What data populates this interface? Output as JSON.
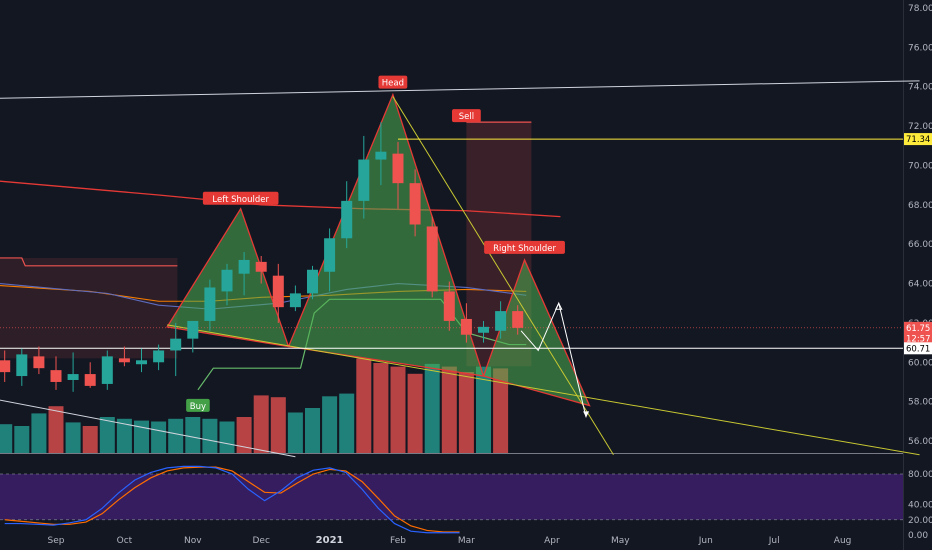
{
  "chart_data": {
    "type": "candlestick",
    "title": "",
    "colors": {
      "background": "#131722",
      "up": "#26a69a",
      "down": "#ef5350",
      "pattern_fill": "#4caf50",
      "pattern_edge": "#e53935",
      "trendline": "#c8c832",
      "resistance": "#d1d4dc",
      "osc_band": "#3c1f6b",
      "osc_k": "#2962ff",
      "osc_d": "#ff6d00"
    },
    "price_axis": {
      "min": 55,
      "max": 78,
      "ticks": [
        "78.00",
        "76.00",
        "74.00",
        "72.00",
        "70.00",
        "68.00",
        "66.00",
        "64.00",
        "62.00",
        "60.00",
        "58.00",
        "56.00"
      ],
      "tick_values": [
        78,
        76,
        74,
        72,
        70,
        68,
        66,
        64,
        62,
        60,
        58,
        56
      ]
    },
    "oscillator_axis": {
      "min": 0,
      "max": 100,
      "ticks": [
        "80.00",
        "40.00",
        "20.00",
        "0.00"
      ],
      "tick_values": [
        80,
        40,
        20,
        0
      ],
      "band": [
        20,
        80
      ]
    },
    "time_axis": {
      "labels": [
        "Sep",
        "Oct",
        "Nov",
        "Dec",
        "2021",
        "Feb",
        "Mar",
        "Apr",
        "May",
        "Jun",
        "Jul",
        "Aug"
      ],
      "positions": [
        0,
        4,
        8,
        12,
        16,
        20,
        24,
        29,
        33,
        38,
        42,
        46
      ]
    },
    "candles": [
      {
        "i": -3,
        "o": 60.1,
        "h": 60.6,
        "l": 59.0,
        "c": 59.5
      },
      {
        "i": -2,
        "o": 59.3,
        "h": 60.7,
        "l": 58.8,
        "c": 60.4
      },
      {
        "i": -1,
        "o": 60.3,
        "h": 60.8,
        "l": 59.4,
        "c": 59.7
      },
      {
        "i": 0,
        "o": 59.6,
        "h": 60.3,
        "l": 58.6,
        "c": 59.0
      },
      {
        "i": 1,
        "o": 59.1,
        "h": 60.5,
        "l": 58.5,
        "c": 59.4
      },
      {
        "i": 2,
        "o": 59.4,
        "h": 60.0,
        "l": 58.7,
        "c": 58.8
      },
      {
        "i": 3,
        "o": 58.9,
        "h": 60.6,
        "l": 58.6,
        "c": 60.3
      },
      {
        "i": 4,
        "o": 60.2,
        "h": 60.8,
        "l": 59.8,
        "c": 60.0
      },
      {
        "i": 5,
        "o": 59.9,
        "h": 60.7,
        "l": 59.5,
        "c": 60.1
      },
      {
        "i": 6,
        "o": 60.0,
        "h": 60.9,
        "l": 59.6,
        "c": 60.6
      },
      {
        "i": 7,
        "o": 60.6,
        "h": 62.0,
        "l": 59.3,
        "c": 61.2
      },
      {
        "i": 8,
        "o": 61.2,
        "h": 62.1,
        "l": 60.5,
        "c": 62.1
      },
      {
        "i": 9,
        "o": 62.1,
        "h": 64.2,
        "l": 61.6,
        "c": 63.8
      },
      {
        "i": 10,
        "o": 63.6,
        "h": 65.0,
        "l": 62.9,
        "c": 64.7
      },
      {
        "i": 11,
        "o": 64.5,
        "h": 65.6,
        "l": 63.4,
        "c": 65.2
      },
      {
        "i": 12,
        "o": 65.1,
        "h": 65.4,
        "l": 64.0,
        "c": 64.6
      },
      {
        "i": 13,
        "o": 64.4,
        "h": 65.0,
        "l": 62.0,
        "c": 62.8
      },
      {
        "i": 14,
        "o": 62.8,
        "h": 63.9,
        "l": 62.6,
        "c": 63.5
      },
      {
        "i": 15,
        "o": 63.5,
        "h": 64.9,
        "l": 63.2,
        "c": 64.7
      },
      {
        "i": 16,
        "o": 64.6,
        "h": 66.8,
        "l": 63.6,
        "c": 66.3
      },
      {
        "i": 17,
        "o": 66.3,
        "h": 69.2,
        "l": 65.8,
        "c": 68.2
      },
      {
        "i": 18,
        "o": 68.2,
        "h": 71.5,
        "l": 67.3,
        "c": 70.3
      },
      {
        "i": 19,
        "o": 70.3,
        "h": 72.2,
        "l": 69.0,
        "c": 70.7
      },
      {
        "i": 20,
        "o": 70.6,
        "h": 71.2,
        "l": 67.8,
        "c": 69.1
      },
      {
        "i": 21,
        "o": 69.1,
        "h": 69.8,
        "l": 66.4,
        "c": 67.0
      },
      {
        "i": 22,
        "o": 66.9,
        "h": 67.4,
        "l": 63.3,
        "c": 63.6
      },
      {
        "i": 23,
        "o": 63.6,
        "h": 64.1,
        "l": 61.6,
        "c": 62.1
      },
      {
        "i": 24,
        "o": 62.2,
        "h": 63.0,
        "l": 61.0,
        "c": 61.4
      },
      {
        "i": 25,
        "o": 61.5,
        "h": 62.1,
        "l": 61.0,
        "c": 61.8
      },
      {
        "i": 26,
        "o": 61.6,
        "h": 63.1,
        "l": 61.2,
        "c": 62.6
      },
      {
        "i": 27,
        "o": 62.6,
        "h": 62.9,
        "l": 61.4,
        "c": 61.75
      }
    ],
    "candle_spacing_index_start": 0,
    "volume": [
      {
        "i": -3,
        "v": 32,
        "up": true
      },
      {
        "i": -2,
        "v": 30,
        "up": true
      },
      {
        "i": -1,
        "v": 44,
        "up": true
      },
      {
        "i": 0,
        "v": 52,
        "up": false
      },
      {
        "i": 1,
        "v": 34,
        "up": true
      },
      {
        "i": 2,
        "v": 30,
        "up": false
      },
      {
        "i": 3,
        "v": 40,
        "up": true
      },
      {
        "i": 4,
        "v": 38,
        "up": true
      },
      {
        "i": 5,
        "v": 36,
        "up": true
      },
      {
        "i": 6,
        "v": 35,
        "up": true
      },
      {
        "i": 7,
        "v": 38,
        "up": true
      },
      {
        "i": 8,
        "v": 40,
        "up": true
      },
      {
        "i": 9,
        "v": 38,
        "up": true
      },
      {
        "i": 10,
        "v": 35,
        "up": true
      },
      {
        "i": 11,
        "v": 40,
        "up": false
      },
      {
        "i": 12,
        "v": 64,
        "up": false
      },
      {
        "i": 13,
        "v": 62,
        "up": false
      },
      {
        "i": 14,
        "v": 45,
        "up": true
      },
      {
        "i": 15,
        "v": 50,
        "up": true
      },
      {
        "i": 16,
        "v": 63,
        "up": true
      },
      {
        "i": 17,
        "v": 66,
        "up": true
      },
      {
        "i": 18,
        "v": 105,
        "up": false
      },
      {
        "i": 19,
        "v": 100,
        "up": false
      },
      {
        "i": 20,
        "v": 96,
        "up": false
      },
      {
        "i": 21,
        "v": 88,
        "up": false
      },
      {
        "i": 22,
        "v": 99,
        "up": true
      },
      {
        "i": 23,
        "v": 96,
        "up": false
      },
      {
        "i": 24,
        "v": 90,
        "up": false
      },
      {
        "i": 25,
        "v": 96,
        "up": true
      },
      {
        "i": 26,
        "v": 94,
        "up": false
      }
    ],
    "oscillator": {
      "k": [
        15,
        15,
        14,
        13,
        16,
        20,
        35,
        55,
        72,
        82,
        88,
        90,
        90,
        88,
        80,
        60,
        45,
        58,
        75,
        85,
        88,
        82,
        60,
        35,
        15,
        5,
        3,
        3,
        3
      ],
      "d": [
        20,
        18,
        16,
        14,
        14,
        17,
        28,
        46,
        62,
        75,
        84,
        88,
        89,
        89,
        84,
        70,
        56,
        55,
        68,
        80,
        86,
        84,
        70,
        48,
        25,
        12,
        6,
        4,
        4
      ]
    },
    "pattern": {
      "name": "Head and Shoulders",
      "labels": {
        "left_shoulder": "Left Shoulder",
        "head": "Head",
        "right_shoulder": "Right Shoulder"
      },
      "points": [
        {
          "i": 6.5,
          "p": 61.8
        },
        {
          "i": 10.8,
          "p": 67.8
        },
        {
          "i": 13.6,
          "p": 60.8
        },
        {
          "i": 19.7,
          "p": 73.6
        },
        {
          "i": 25.0,
          "p": 59.3
        },
        {
          "i": 27.4,
          "p": 65.2
        },
        {
          "i": 31.2,
          "p": 57.8
        }
      ]
    },
    "signals": [
      {
        "label": "Buy",
        "i": 8.3,
        "p": 58.6
      },
      {
        "label": "Sell",
        "i": 24.0,
        "p": 72.2
      }
    ],
    "sell_box": {
      "i0": 24.0,
      "i1": 27.8,
      "p_top": 72.2,
      "p_bottom": 59.8
    },
    "trendlines": [
      {
        "name": "resistance",
        "i0": -4,
        "p0": 73.4,
        "i1": 50.5,
        "p1": 74.3
      },
      {
        "name": "support",
        "i0": 6.5,
        "p0": 61.9,
        "i1": 50.5,
        "p1": 55.3
      },
      {
        "name": "head-break",
        "i0": 19.7,
        "p0": 73.5,
        "i1": 32.6,
        "p1": 55.3
      },
      {
        "name": "lower-white",
        "i0": -4,
        "p0": 58.2,
        "i1": 14.0,
        "p1": 55.2
      }
    ],
    "price_markers": [
      {
        "label": "71.34",
        "value": 71.34,
        "color": "#ffeb3b",
        "text_color": "#000000"
      },
      {
        "label": "61.75",
        "value": 61.75,
        "color": "#ef5350",
        "text_color": "#ffffff"
      },
      {
        "label": "12:57",
        "value": 61.2,
        "color": "#ef5350",
        "text_color": "#ffffff"
      },
      {
        "label": "60.71",
        "value": 60.71,
        "color": "#ffffff",
        "text_color": "#000000"
      }
    ],
    "projection": [
      {
        "i": 27.2,
        "p": 61.6
      },
      {
        "i": 28.2,
        "p": 60.6
      },
      {
        "i": 29.4,
        "p": 63.0
      },
      {
        "i": 31.0,
        "p": 57.2
      }
    ]
  }
}
